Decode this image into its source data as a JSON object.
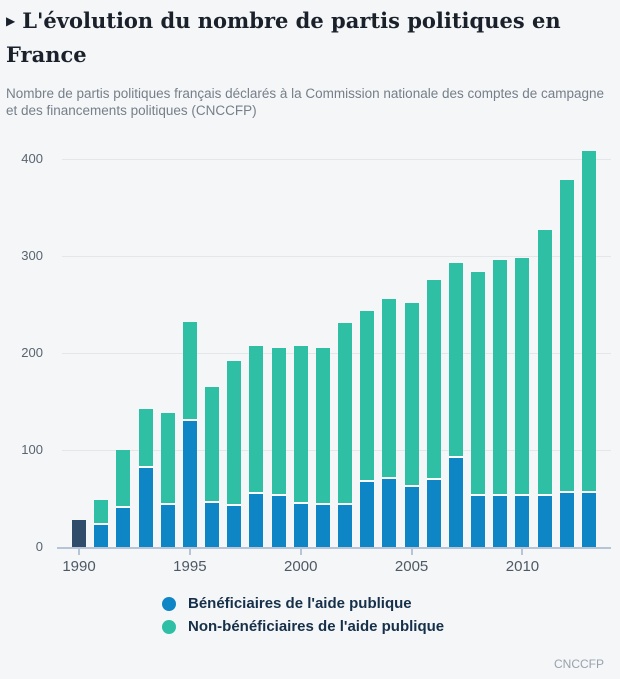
{
  "page": {
    "background": "#f4f6f8"
  },
  "header": {
    "arrow": "▶",
    "title": "L'évolution du nombre de partis politiques en France",
    "subtitle": "Nombre de partis politiques français déclarés à la Commission nationale des comptes de campagne et des financements politiques (CNCCFP)"
  },
  "legend": {
    "items": [
      {
        "label": "Bénéficiaires de l'aide publique",
        "color": "#0e86c6"
      },
      {
        "label": "Non-bénéficiaires de l'aide publique",
        "color": "#2ebfa4"
      }
    ]
  },
  "source": "CNCCFP",
  "chart_data": {
    "type": "bar",
    "stacked": true,
    "title": "L'évolution du nombre de partis politiques en France",
    "xlabel": "",
    "ylabel": "",
    "x": [
      1990,
      1991,
      1992,
      1993,
      1994,
      1995,
      1996,
      1997,
      1998,
      1999,
      2000,
      2001,
      2002,
      2003,
      2004,
      2005,
      2006,
      2007,
      2008,
      2009,
      2010,
      2011,
      2012,
      2013
    ],
    "series": [
      {
        "name": "Bénéficiaires de l'aide publique",
        "color": "#0e86c6",
        "values": [
          28,
          23,
          40,
          81,
          43,
          130,
          45,
          42,
          55,
          53,
          44,
          43,
          43,
          67,
          70,
          62,
          69,
          92,
          52,
          52,
          53,
          53,
          56,
          56
        ]
      },
      {
        "name": "Non-bénéficiaires de l'aide publique",
        "color": "#2ebfa4",
        "values": [
          0,
          25,
          60,
          61,
          95,
          102,
          120,
          149,
          152,
          152,
          163,
          162,
          188,
          176,
          185,
          189,
          206,
          200,
          231,
          244,
          245,
          273,
          322,
          352
        ]
      }
    ],
    "totals": [
      28,
      48,
      100,
      142,
      138,
      232,
      165,
      191,
      207,
      205,
      207,
      205,
      231,
      243,
      255,
      251,
      275,
      292,
      283,
      296,
      298,
      326,
      378,
      408
    ],
    "special_bar_colors": {
      "1990": "#2f4d6b"
    },
    "ylim": [
      0,
      400
    ],
    "yticks": [
      0,
      100,
      200,
      300,
      400
    ],
    "xticks": [
      1990,
      1995,
      2000,
      2005,
      2010
    ],
    "grid": "horizontal",
    "legend_position": "bottom"
  }
}
